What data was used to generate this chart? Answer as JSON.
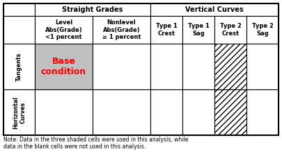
{
  "straight_grades_label": "Straight Grades",
  "vertical_curves_label": "Vertical Curves",
  "col_headers": [
    "Level\nAbs(Grade)\n<1 percent",
    "Nonlevel\nAbs(Grade)\n≥ 1 percent",
    "Type 1\nCrest",
    "Type 1\nSag",
    "Type 2\nCrest",
    "Type 2\nSag"
  ],
  "row_headers": [
    "Tangents",
    "Horizontal\nCurves"
  ],
  "note": "Note: Data in the three shaded cells were used in this analysis, while\ndata in the blank cells were not used in this analysis.",
  "base_condition_text": "Base\ncondition",
  "base_condition_color": "#FF0000",
  "gray_cell_color": "#C0C0C0",
  "hatch_pattern": "////",
  "background_color": "#FFFFFF",
  "border_color": "#000000",
  "figsize": [
    4.06,
    2.38
  ],
  "dpi": 100
}
